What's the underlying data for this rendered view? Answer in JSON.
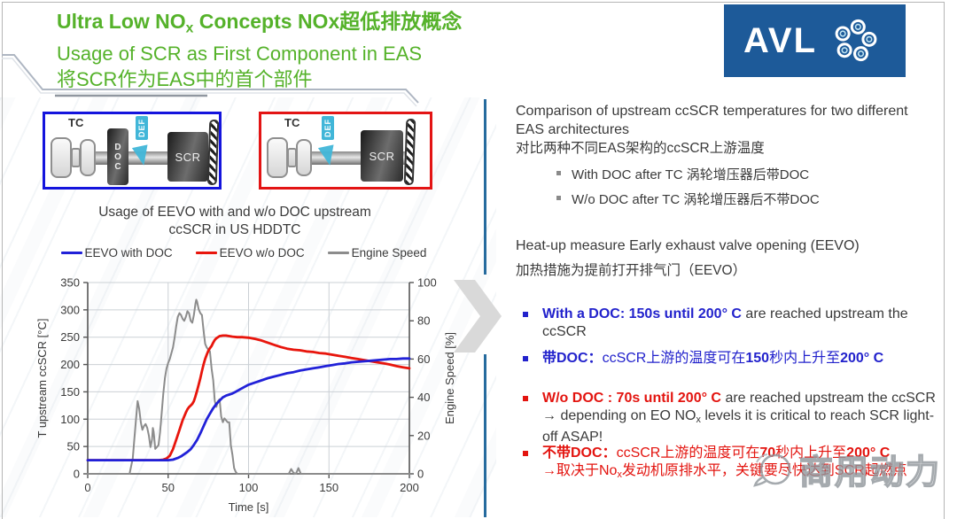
{
  "colors": {
    "title_green": "#55b22a",
    "blue_text": "#2222cc",
    "red_text": "#e3140f",
    "logo_blue": "#1d5a99",
    "divider_blue": "#266b9e",
    "def_cyan": "#41b6d8",
    "body_dark": "#3a3a3a"
  },
  "header": {
    "title_line1_segments": [
      {
        "t": "Ultra Low NO"
      },
      {
        "t": "x",
        "c": "sub"
      },
      {
        "t": " Concepts NOx超低排放概念"
      }
    ],
    "title_line2": "Usage of SCR as First Component in EAS",
    "title_line3": "将SCR作为EAS中的首个部件"
  },
  "logo": {
    "text": "AVL",
    "icon": "avl-pinwheel-icon"
  },
  "diagrams": {
    "with_doc": {
      "tc": "TC",
      "doc": "DOC",
      "def": "DEF",
      "scr": "SCR",
      "border_color": "#1414dd"
    },
    "without_doc": {
      "tc": "TC",
      "def": "DEF",
      "scr": "SCR",
      "border_color": "#e31414"
    }
  },
  "chart": {
    "title_line1": "Usage of EEVO with and w/o DOC upstream",
    "title_line2": "ccSCR in US HDDTC"
  },
  "chart_data": {
    "type": "line",
    "title": "Usage of EEVO with and w/o DOC upstream ccSCR in US HDDTC",
    "xlabel": "Time [s]",
    "xlim": [
      0,
      200
    ],
    "xticks": [
      0,
      50,
      100,
      150,
      200
    ],
    "ylabel_left": "T upstream ccSCR [°C]",
    "ylim_left": [
      0,
      350
    ],
    "yticks_left": [
      0,
      50,
      100,
      150,
      200,
      250,
      300,
      350
    ],
    "ylabel_right": "Engine Speed [%]",
    "ylim_right": [
      0,
      100
    ],
    "yticks_right": [
      0,
      20,
      40,
      60,
      80,
      100
    ],
    "grid": true,
    "legend_position": "top",
    "series": [
      {
        "name": "EEVO with DOC",
        "color": "#2121d8",
        "axis": "left",
        "width": 2.8,
        "points": [
          [
            0,
            25
          ],
          [
            45,
            25
          ],
          [
            50,
            25
          ],
          [
            53,
            26
          ],
          [
            56,
            29
          ],
          [
            58,
            32
          ],
          [
            60,
            36
          ],
          [
            62,
            40
          ],
          [
            64,
            45
          ],
          [
            66,
            53
          ],
          [
            68,
            62
          ],
          [
            70,
            74
          ],
          [
            72,
            87
          ],
          [
            74,
            100
          ],
          [
            76,
            110
          ],
          [
            78,
            120
          ],
          [
            80,
            128
          ],
          [
            82,
            134
          ],
          [
            84,
            140
          ],
          [
            86,
            143
          ],
          [
            88,
            145
          ],
          [
            90,
            147
          ],
          [
            92,
            150
          ],
          [
            95,
            155
          ],
          [
            98,
            160
          ],
          [
            100,
            163
          ],
          [
            104,
            167
          ],
          [
            108,
            171
          ],
          [
            112,
            175
          ],
          [
            116,
            178
          ],
          [
            120,
            181
          ],
          [
            124,
            184
          ],
          [
            128,
            186
          ],
          [
            132,
            189
          ],
          [
            136,
            191
          ],
          [
            140,
            193
          ],
          [
            144,
            195
          ],
          [
            148,
            197
          ],
          [
            152,
            199
          ],
          [
            156,
            201
          ],
          [
            160,
            202
          ],
          [
            164,
            204
          ],
          [
            168,
            205
          ],
          [
            172,
            206
          ],
          [
            176,
            207
          ],
          [
            180,
            208
          ],
          [
            184,
            209
          ],
          [
            188,
            210
          ],
          [
            192,
            210
          ],
          [
            196,
            211
          ],
          [
            200,
            211
          ]
        ]
      },
      {
        "name": "EEVO w/o DOC",
        "color": "#e8150c",
        "axis": "left",
        "width": 2.8,
        "points": [
          [
            0,
            25
          ],
          [
            44,
            25
          ],
          [
            47,
            26
          ],
          [
            49,
            28
          ],
          [
            51,
            33
          ],
          [
            53,
            45
          ],
          [
            55,
            62
          ],
          [
            57,
            80
          ],
          [
            59,
            98
          ],
          [
            61,
            112
          ],
          [
            62,
            118
          ],
          [
            63,
            122
          ],
          [
            64,
            125
          ],
          [
            65,
            128
          ],
          [
            66,
            133
          ],
          [
            67,
            142
          ],
          [
            68,
            152
          ],
          [
            69,
            163
          ],
          [
            70,
            175
          ],
          [
            71,
            188
          ],
          [
            72,
            200
          ],
          [
            73,
            210
          ],
          [
            74,
            218
          ],
          [
            75,
            225
          ],
          [
            76,
            230
          ],
          [
            77,
            234
          ],
          [
            78,
            240
          ],
          [
            79,
            245
          ],
          [
            80,
            248
          ],
          [
            82,
            252
          ],
          [
            84,
            253
          ],
          [
            86,
            253
          ],
          [
            88,
            252
          ],
          [
            90,
            251
          ],
          [
            93,
            250
          ],
          [
            96,
            250
          ],
          [
            100,
            249
          ],
          [
            104,
            247
          ],
          [
            108,
            244
          ],
          [
            112,
            240
          ],
          [
            116,
            236
          ],
          [
            120,
            232
          ],
          [
            124,
            229
          ],
          [
            128,
            227
          ],
          [
            132,
            226
          ],
          [
            136,
            224
          ],
          [
            140,
            223
          ],
          [
            144,
            221
          ],
          [
            148,
            220
          ],
          [
            152,
            218
          ],
          [
            156,
            216
          ],
          [
            160,
            214
          ],
          [
            164,
            212
          ],
          [
            168,
            210
          ],
          [
            172,
            208
          ],
          [
            176,
            206
          ],
          [
            180,
            204
          ],
          [
            184,
            202
          ],
          [
            188,
            200
          ],
          [
            192,
            197
          ],
          [
            196,
            195
          ],
          [
            200,
            193
          ]
        ]
      },
      {
        "name": "Engine Speed",
        "color": "#8c8c8c",
        "axis": "right",
        "width": 2,
        "points": [
          [
            0,
            0
          ],
          [
            26,
            0
          ],
          [
            28,
            8
          ],
          [
            29,
            18
          ],
          [
            30,
            28
          ],
          [
            31,
            38
          ],
          [
            32,
            34
          ],
          [
            33,
            27
          ],
          [
            34,
            23
          ],
          [
            35,
            25
          ],
          [
            36,
            26
          ],
          [
            37,
            24
          ],
          [
            38,
            20
          ],
          [
            39,
            14
          ],
          [
            40,
            18
          ],
          [
            40.5,
            24
          ],
          [
            41,
            22
          ],
          [
            42,
            13
          ],
          [
            43,
            14
          ],
          [
            44,
            15
          ],
          [
            45,
            22
          ],
          [
            46,
            32
          ],
          [
            47,
            42
          ],
          [
            48,
            50
          ],
          [
            49,
            55
          ],
          [
            50,
            58
          ],
          [
            51,
            60
          ],
          [
            52,
            63
          ],
          [
            53,
            66
          ],
          [
            54,
            71
          ],
          [
            55,
            77
          ],
          [
            56,
            82
          ],
          [
            57,
            84
          ],
          [
            58,
            83
          ],
          [
            59,
            81
          ],
          [
            60,
            80
          ],
          [
            61,
            82
          ],
          [
            62,
            85
          ],
          [
            63,
            84
          ],
          [
            64,
            80
          ],
          [
            65,
            79
          ],
          [
            66,
            83
          ],
          [
            67,
            89
          ],
          [
            67.5,
            91
          ],
          [
            68,
            90
          ],
          [
            69,
            86
          ],
          [
            70,
            84
          ],
          [
            71,
            83
          ],
          [
            72,
            75
          ],
          [
            73,
            68
          ],
          [
            74,
            66
          ],
          [
            75,
            65
          ],
          [
            76,
            64
          ],
          [
            77,
            55
          ],
          [
            78,
            49
          ],
          [
            79,
            38
          ],
          [
            80,
            35
          ],
          [
            81,
            38
          ],
          [
            82,
            39
          ],
          [
            83,
            30
          ],
          [
            84,
            27
          ],
          [
            85,
            29
          ],
          [
            86,
            28
          ],
          [
            87,
            27
          ],
          [
            88,
            27
          ],
          [
            89,
            15
          ],
          [
            90,
            10
          ],
          [
            91,
            3
          ],
          [
            92,
            1
          ],
          [
            93,
            0
          ],
          [
            120,
            0
          ],
          [
            125,
            0
          ],
          [
            126.5,
            2.5
          ],
          [
            128,
            0.5
          ],
          [
            129.5,
            0
          ],
          [
            131,
            3
          ],
          [
            132.5,
            0
          ],
          [
            200,
            0
          ]
        ]
      }
    ]
  },
  "right_panel": {
    "p1": "Comparison of upstream ccSCR temperatures for two different EAS architectures",
    "p1_cn": "对比两种不同EAS架构的ccSCR上游温度",
    "sub_bullets": [
      {
        "label": "With DOC after TC 涡轮增压器后带DOC"
      },
      {
        "label": "W/o DOC after TC  涡轮增压器后不带DOC"
      }
    ],
    "p2": "Heat-up measure Early exhaust valve opening (EEVO)",
    "p2_cn": "加热措施为提前打开排气门（EEVO）",
    "bullet1_segments": [
      {
        "t": "With a DOC: 150s until 200° C",
        "c": "bb"
      },
      {
        "t": " are reached upstream the ccSCR",
        "c": "dk"
      }
    ],
    "bullet2_segments": [
      {
        "t": "带DOC：",
        "c": "bb"
      },
      {
        "t": "ccSCR上游的温度可在",
        "c": "blue-t"
      },
      {
        "t": "150",
        "c": "bb"
      },
      {
        "t": "秒内上升至",
        "c": "blue-t"
      },
      {
        "t": "200° C",
        "c": "bb"
      }
    ],
    "bullet3_segments": [
      {
        "t": "W/o DOC : 70s until 200° C ",
        "c": "br"
      },
      {
        "t": " are reached upstream the ccSCR → depending on EO NO",
        "c": "dk"
      },
      {
        "t": "x",
        "c": "dk sub"
      },
      {
        "t": " levels it is critical to reach SCR light-off ASAP!",
        "c": "dk"
      }
    ],
    "bullet4_segments": [
      {
        "t": "不带DOC：",
        "c": "br"
      },
      {
        "t": "ccSCR上游的温度可在",
        "c": "red-t"
      },
      {
        "t": "70",
        "c": "br"
      },
      {
        "t": "秒内上升至",
        "c": "red-t"
      },
      {
        "t": "200° C",
        "c": "br"
      }
    ],
    "bullet4_line2_segments": [
      {
        "t": "→取决于No",
        "c": "red-t"
      },
      {
        "t": "x",
        "c": "red-t sub"
      },
      {
        "t": "发动机原排水平，关键要尽快达到SCR起燃点",
        "c": "red-t"
      }
    ]
  },
  "watermark": {
    "text": "商用动力",
    "icon": "speech-bubble-logo-icon"
  }
}
